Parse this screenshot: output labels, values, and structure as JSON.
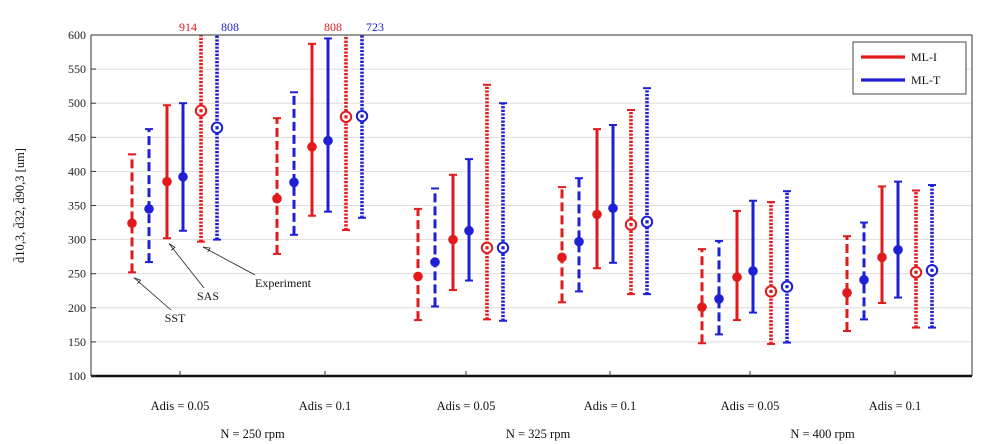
{
  "chart_data": {
    "type": "errorbar",
    "ylabel": "d̄10,3, d̄32, d̄90,3 [um]",
    "ylim": [
      100,
      600
    ],
    "yticks": [
      100,
      150,
      200,
      250,
      300,
      350,
      400,
      450,
      500,
      550,
      600
    ],
    "legend": {
      "position": "top-right",
      "entries": [
        {
          "name": "ML-I",
          "color": "#e31a1c"
        },
        {
          "name": "ML-T",
          "color": "#1f1fd6"
        }
      ]
    },
    "line_styles": {
      "SST": "dashed",
      "SAS": "solid",
      "Experiment": "dotted"
    },
    "groups": [
      {
        "label": "N = 250 rpm",
        "cases": [
          {
            "label": "Adis = 0.05",
            "bars": [
              {
                "method": "SST",
                "model": "ML-I",
                "low": 252,
                "mid": 324,
                "high": 425
              },
              {
                "method": "SST",
                "model": "ML-T",
                "low": 267,
                "mid": 345,
                "high": 462
              },
              {
                "method": "SAS",
                "model": "ML-I",
                "low": 302,
                "mid": 385,
                "high": 497
              },
              {
                "method": "SAS",
                "model": "ML-T",
                "low": 313,
                "mid": 392,
                "high": 500
              },
              {
                "method": "Experiment",
                "model": "ML-I",
                "low": 297,
                "mid": 489,
                "high": 914
              },
              {
                "method": "Experiment",
                "model": "ML-T",
                "low": 300,
                "mid": 464,
                "high": 808
              }
            ]
          },
          {
            "label": "Adis = 0.1",
            "bars": [
              {
                "method": "SST",
                "model": "ML-I",
                "low": 279,
                "mid": 360,
                "high": 478
              },
              {
                "method": "SST",
                "model": "ML-T",
                "low": 307,
                "mid": 384,
                "high": 516
              },
              {
                "method": "SAS",
                "model": "ML-I",
                "low": 335,
                "mid": 436,
                "high": 587
              },
              {
                "method": "SAS",
                "model": "ML-T",
                "low": 341,
                "mid": 445,
                "high": 595
              },
              {
                "method": "Experiment",
                "model": "ML-I",
                "low": 314,
                "mid": 480,
                "high": 808
              },
              {
                "method": "Experiment",
                "model": "ML-T",
                "low": 332,
                "mid": 481,
                "high": 723
              }
            ]
          }
        ]
      },
      {
        "label": "N = 325 rpm",
        "cases": [
          {
            "label": "Adis = 0.05",
            "bars": [
              {
                "method": "SST",
                "model": "ML-I",
                "low": 182,
                "mid": 246,
                "high": 345
              },
              {
                "method": "SST",
                "model": "ML-T",
                "low": 202,
                "mid": 267,
                "high": 375
              },
              {
                "method": "SAS",
                "model": "ML-I",
                "low": 226,
                "mid": 300,
                "high": 395
              },
              {
                "method": "SAS",
                "model": "ML-T",
                "low": 240,
                "mid": 313,
                "high": 418
              },
              {
                "method": "Experiment",
                "model": "ML-I",
                "low": 183,
                "mid": 288,
                "high": 527
              },
              {
                "method": "Experiment",
                "model": "ML-T",
                "low": 181,
                "mid": 288,
                "high": 500
              }
            ]
          },
          {
            "label": "Adis = 0.1",
            "bars": [
              {
                "method": "SST",
                "model": "ML-I",
                "low": 208,
                "mid": 274,
                "high": 377
              },
              {
                "method": "SST",
                "model": "ML-T",
                "low": 224,
                "mid": 297,
                "high": 390
              },
              {
                "method": "SAS",
                "model": "ML-I",
                "low": 258,
                "mid": 337,
                "high": 462
              },
              {
                "method": "SAS",
                "model": "ML-T",
                "low": 266,
                "mid": 346,
                "high": 468
              },
              {
                "method": "Experiment",
                "model": "ML-I",
                "low": 220,
                "mid": 322,
                "high": 490
              },
              {
                "method": "Experiment",
                "model": "ML-T",
                "low": 220,
                "mid": 326,
                "high": 522
              }
            ]
          }
        ]
      },
      {
        "label": "N = 400 rpm",
        "cases": [
          {
            "label": "Adis = 0.05",
            "bars": [
              {
                "method": "SST",
                "model": "ML-I",
                "low": 148,
                "mid": 201,
                "high": 286
              },
              {
                "method": "SST",
                "model": "ML-T",
                "low": 161,
                "mid": 213,
                "high": 298
              },
              {
                "method": "SAS",
                "model": "ML-I",
                "low": 182,
                "mid": 245,
                "high": 342
              },
              {
                "method": "SAS",
                "model": "ML-T",
                "low": 193,
                "mid": 254,
                "high": 357
              },
              {
                "method": "Experiment",
                "model": "ML-I",
                "low": 147,
                "mid": 224,
                "high": 355
              },
              {
                "method": "Experiment",
                "model": "ML-T",
                "low": 149,
                "mid": 231,
                "high": 371
              }
            ]
          },
          {
            "label": "Adis = 0.1",
            "bars": [
              {
                "method": "SST",
                "model": "ML-I",
                "low": 166,
                "mid": 222,
                "high": 305
              },
              {
                "method": "SST",
                "model": "ML-T",
                "low": 183,
                "mid": 241,
                "high": 325
              },
              {
                "method": "SAS",
                "model": "ML-I",
                "low": 207,
                "mid": 274,
                "high": 378
              },
              {
                "method": "SAS",
                "model": "ML-T",
                "low": 215,
                "mid": 285,
                "high": 385
              },
              {
                "method": "Experiment",
                "model": "ML-I",
                "low": 171,
                "mid": 252,
                "high": 372
              },
              {
                "method": "Experiment",
                "model": "ML-T",
                "low": 171,
                "mid": 255,
                "high": 380
              }
            ]
          }
        ]
      }
    ],
    "annotations": [
      {
        "text": "SST",
        "target": "SST"
      },
      {
        "text": "SAS",
        "target": "SAS"
      },
      {
        "text": "Experiment",
        "target": "Experiment"
      }
    ]
  }
}
